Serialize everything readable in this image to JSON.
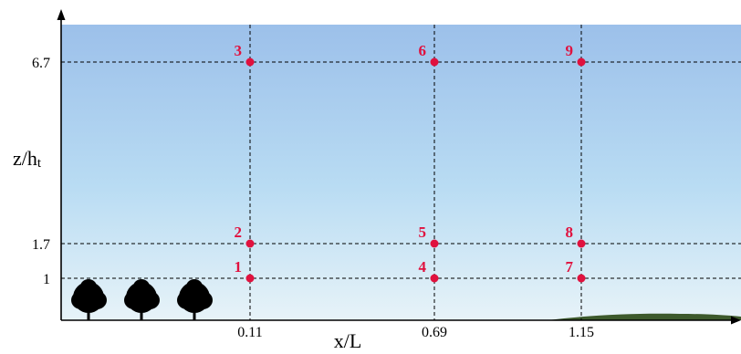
{
  "chart_data": {
    "type": "scatter",
    "xlabel": "x/L",
    "ylabel": {
      "main": "z/h",
      "sub": "t"
    },
    "x_ticks": [
      "0.11",
      "0.69",
      "1.15"
    ],
    "y_ticks": [
      "1",
      "1.7",
      "6.7"
    ],
    "points": [
      {
        "label": "1",
        "x": 0.11,
        "y": 1
      },
      {
        "label": "2",
        "x": 0.11,
        "y": 1.7
      },
      {
        "label": "3",
        "x": 0.11,
        "y": 6.7
      },
      {
        "label": "4",
        "x": 0.69,
        "y": 1
      },
      {
        "label": "5",
        "x": 0.69,
        "y": 1.7
      },
      {
        "label": "6",
        "x": 0.69,
        "y": 6.7
      },
      {
        "label": "7",
        "x": 1.15,
        "y": 1
      },
      {
        "label": "8",
        "x": 1.15,
        "y": 1.7
      },
      {
        "label": "9",
        "x": 1.15,
        "y": 6.7
      }
    ],
    "grid": "dashed lines through measurement points",
    "background": "sky gradient",
    "decorations": [
      "tree-icon",
      "tree-icon",
      "tree-icon",
      "hill-icon"
    ]
  },
  "colors": {
    "point": "#e0113e",
    "label": "#e0113e",
    "sky_top": "#9cc0ea",
    "sky_bottom": "#e7f3f8",
    "axis": "#000000",
    "tree": "#000000"
  }
}
